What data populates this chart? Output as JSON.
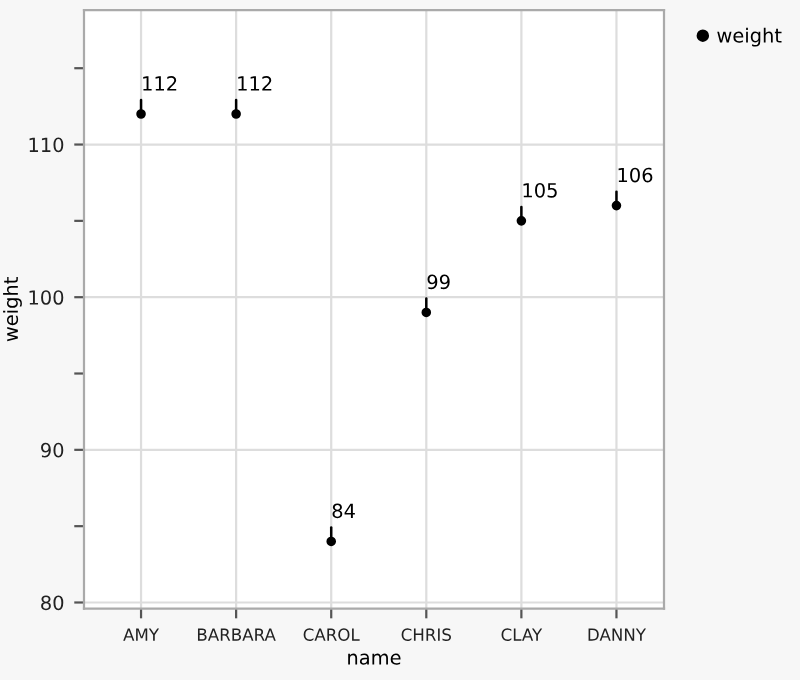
{
  "chart_data": {
    "type": "scatter",
    "xlabel": "name",
    "ylabel": "weight",
    "categories": [
      "AMY",
      "BARBARA",
      "CAROL",
      "CHRIS",
      "CLAY",
      "DANNY"
    ],
    "series": [
      {
        "name": "weight",
        "color": "#000000",
        "values": [
          112,
          112,
          84,
          99,
          105,
          106
        ]
      }
    ],
    "ylim": [
      79.6,
      118.8
    ],
    "yticks": [
      80,
      {
        "value": 85,
        "label": null
      },
      90,
      {
        "value": 95,
        "label": null
      },
      100,
      {
        "value": 105,
        "label": null
      },
      110,
      {
        "value": 115,
        "label": null
      }
    ],
    "grid": true,
    "legend": "top right",
    "marker": "circle",
    "data_labels": true
  }
}
